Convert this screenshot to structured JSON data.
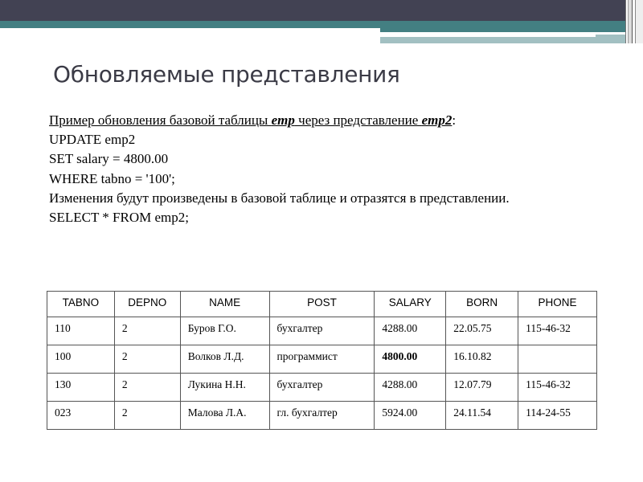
{
  "slide": {
    "title": "Обновляемые представления",
    "intro": {
      "text1": "Пример обновления базовой таблицы ",
      "emp": "emp",
      "text2": " через представление ",
      "emp2": "emp2",
      "text3": ":"
    },
    "lines": [
      "UPDATE  emp2",
      "SET  salary = 4800.00",
      "WHERE  tabno = '100';",
      "Изменения будут произведены в базовой таблице и отразятся в представлении.",
      "SELECT  *  FROM  emp2;"
    ]
  },
  "table": {
    "headers": [
      "TABNO",
      "DEPNO",
      "NAME",
      "POST",
      "SALARY",
      "BORN",
      "PHONE"
    ],
    "rows": [
      [
        "110",
        "2",
        "Буров Г.О.",
        "бухгалтер",
        "4288.00",
        "22.05.75",
        "115-46-32"
      ],
      [
        "100",
        "2",
        "Волков Л.Д.",
        "программист",
        "4800.00",
        "16.10.82",
        ""
      ],
      [
        "130",
        "2",
        "Лукина Н.Н.",
        "бухгалтер",
        "4288.00",
        "12.07.79",
        "115-46-32"
      ],
      [
        "023",
        "2",
        "Малова Л.А.",
        "гл. бухгалтер",
        "5924.00",
        "24.11.54",
        "114-24-55"
      ]
    ],
    "highlighted_cell": {
      "row": 1,
      "col": 4
    }
  },
  "colors": {
    "header_dark": "#424253",
    "header_teal": "#437f82",
    "header_light": "#a2c0c2",
    "title": "#3b3b46"
  }
}
